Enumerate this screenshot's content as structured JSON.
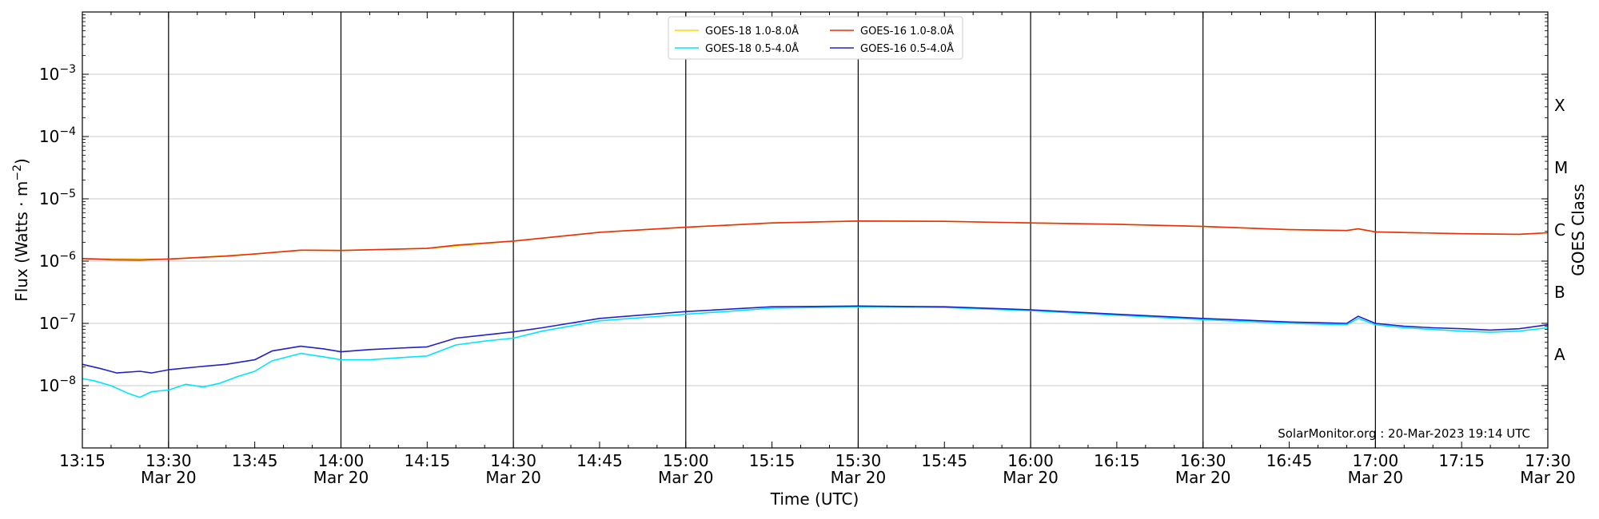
{
  "chart_data": {
    "type": "line",
    "title": "",
    "xlabel": "Time (UTC)",
    "ylabel": "Flux (Watts · m",
    "ylabel_sup": "−2",
    "ylabel_close": ")",
    "y2label": "GOES Class",
    "credit": "SolarMonitor.org : 20-Mar-2023 19:14 UTC",
    "x_scale": "time",
    "y_scale": "log",
    "xlim": [
      "13:15",
      "17:30"
    ],
    "ylim": [
      1e-09,
      0.01
    ],
    "grid": "horizontal",
    "legend_position": "top-center",
    "x_ticks": [
      {
        "time": "13:15",
        "label": "13:15",
        "date": ""
      },
      {
        "time": "13:30",
        "label": "13:30",
        "date": "Mar 20"
      },
      {
        "time": "13:45",
        "label": "13:45",
        "date": ""
      },
      {
        "time": "14:00",
        "label": "14:00",
        "date": "Mar 20"
      },
      {
        "time": "14:15",
        "label": "14:15",
        "date": ""
      },
      {
        "time": "14:30",
        "label": "14:30",
        "date": "Mar 20"
      },
      {
        "time": "14:45",
        "label": "14:45",
        "date": ""
      },
      {
        "time": "15:00",
        "label": "15:00",
        "date": "Mar 20"
      },
      {
        "time": "15:15",
        "label": "15:15",
        "date": ""
      },
      {
        "time": "15:30",
        "label": "15:30",
        "date": "Mar 20"
      },
      {
        "time": "15:45",
        "label": "15:45",
        "date": ""
      },
      {
        "time": "16:00",
        "label": "16:00",
        "date": "Mar 20"
      },
      {
        "time": "16:15",
        "label": "16:15",
        "date": ""
      },
      {
        "time": "16:30",
        "label": "16:30",
        "date": "Mar 20"
      },
      {
        "time": "16:45",
        "label": "16:45",
        "date": ""
      },
      {
        "time": "17:00",
        "label": "17:00",
        "date": "Mar 20"
      },
      {
        "time": "17:15",
        "label": "17:15",
        "date": ""
      },
      {
        "time": "17:30",
        "label": "17:30",
        "date": "Mar 20"
      }
    ],
    "y_ticks": [
      {
        "value": 1e-08,
        "base": "10",
        "exp": "−8"
      },
      {
        "value": 1e-07,
        "base": "10",
        "exp": "−7"
      },
      {
        "value": 1e-06,
        "base": "10",
        "exp": "−6"
      },
      {
        "value": 1e-05,
        "base": "10",
        "exp": "−5"
      },
      {
        "value": 0.0001,
        "base": "10",
        "exp": "−4"
      },
      {
        "value": 0.001,
        "base": "10",
        "exp": "−3"
      }
    ],
    "goes_classes": [
      {
        "label": "A",
        "value": 3.16e-08
      },
      {
        "label": "B",
        "value": 3.16e-07
      },
      {
        "label": "C",
        "value": 3.16e-06
      },
      {
        "label": "M",
        "value": 3.16e-05
      },
      {
        "label": "X",
        "value": 0.000316
      }
    ],
    "series": [
      {
        "name": "GOES-18 1.0-8.0Å",
        "color": "#ffd700",
        "points": [
          [
            "13:15",
            1.1e-06
          ],
          [
            "13:30",
            1.08e-06
          ],
          [
            "13:45",
            1.3e-06
          ],
          [
            "13:53",
            1.5e-06
          ],
          [
            "14:00",
            1.48e-06
          ],
          [
            "14:15",
            1.6e-06
          ],
          [
            "14:30",
            2.1e-06
          ],
          [
            "14:45",
            2.9e-06
          ],
          [
            "15:00",
            3.5e-06
          ],
          [
            "15:15",
            4.1e-06
          ],
          [
            "15:30",
            4.4e-06
          ],
          [
            "15:45",
            4.35e-06
          ],
          [
            "16:00",
            4.1e-06
          ],
          [
            "16:15",
            3.9e-06
          ],
          [
            "16:30",
            3.6e-06
          ],
          [
            "16:45",
            3.2e-06
          ],
          [
            "16:55",
            3.1e-06
          ],
          [
            "16:57",
            3.3e-06
          ],
          [
            "17:00",
            2.95e-06
          ],
          [
            "17:15",
            2.75e-06
          ],
          [
            "17:25",
            2.7e-06
          ],
          [
            "17:30",
            2.85e-06
          ]
        ]
      },
      {
        "name": "GOES-18 0.5-4.0Å",
        "color": "#00e5ff",
        "points": [
          [
            "13:15",
            1.3e-08
          ],
          [
            "13:17",
            1.2e-08
          ],
          [
            "13:20",
            1e-08
          ],
          [
            "13:23",
            7.5e-09
          ],
          [
            "13:25",
            6.5e-09
          ],
          [
            "13:27",
            8e-09
          ],
          [
            "13:30",
            8.5e-09
          ],
          [
            "13:33",
            1.05e-08
          ],
          [
            "13:36",
            9.5e-09
          ],
          [
            "13:39",
            1.1e-08
          ],
          [
            "13:42",
            1.4e-08
          ],
          [
            "13:45",
            1.7e-08
          ],
          [
            "13:48",
            2.5e-08
          ],
          [
            "13:53",
            3.3e-08
          ],
          [
            "13:57",
            2.9e-08
          ],
          [
            "14:00",
            2.6e-08
          ],
          [
            "14:05",
            2.6e-08
          ],
          [
            "14:10",
            2.8e-08
          ],
          [
            "14:15",
            3e-08
          ],
          [
            "14:20",
            4.5e-08
          ],
          [
            "14:25",
            5.2e-08
          ],
          [
            "14:30",
            5.8e-08
          ],
          [
            "14:35",
            7.5e-08
          ],
          [
            "14:45",
            1.1e-07
          ],
          [
            "15:00",
            1.4e-07
          ],
          [
            "15:15",
            1.75e-07
          ],
          [
            "15:30",
            1.85e-07
          ],
          [
            "15:45",
            1.8e-07
          ],
          [
            "16:00",
            1.6e-07
          ],
          [
            "16:15",
            1.35e-07
          ],
          [
            "16:30",
            1.15e-07
          ],
          [
            "16:45",
            1e-07
          ],
          [
            "16:55",
            9.5e-08
          ],
          [
            "16:57",
            1.2e-07
          ],
          [
            "17:00",
            9.5e-08
          ],
          [
            "17:05",
            8.5e-08
          ],
          [
            "17:10",
            8e-08
          ],
          [
            "17:15",
            7.5e-08
          ],
          [
            "17:20",
            7.2e-08
          ],
          [
            "17:25",
            7.5e-08
          ],
          [
            "17:30",
            8.5e-08
          ]
        ]
      },
      {
        "name": "GOES-16 1.0-8.0Å",
        "color": "#ee2c0c",
        "points": [
          [
            "13:15",
            1.1e-06
          ],
          [
            "13:20",
            1.05e-06
          ],
          [
            "13:25",
            1.04e-06
          ],
          [
            "13:30",
            1.08e-06
          ],
          [
            "13:40",
            1.2e-06
          ],
          [
            "13:45",
            1.3e-06
          ],
          [
            "13:53",
            1.5e-06
          ],
          [
            "14:00",
            1.48e-06
          ],
          [
            "14:15",
            1.6e-06
          ],
          [
            "14:20",
            1.8e-06
          ],
          [
            "14:30",
            2.1e-06
          ],
          [
            "14:45",
            2.9e-06
          ],
          [
            "15:00",
            3.5e-06
          ],
          [
            "15:15",
            4.1e-06
          ],
          [
            "15:30",
            4.4e-06
          ],
          [
            "15:45",
            4.35e-06
          ],
          [
            "16:00",
            4.1e-06
          ],
          [
            "16:15",
            3.9e-06
          ],
          [
            "16:30",
            3.6e-06
          ],
          [
            "16:45",
            3.2e-06
          ],
          [
            "16:55",
            3.1e-06
          ],
          [
            "16:57",
            3.3e-06
          ],
          [
            "17:00",
            2.95e-06
          ],
          [
            "17:15",
            2.75e-06
          ],
          [
            "17:25",
            2.7e-06
          ],
          [
            "17:30",
            2.85e-06
          ]
        ]
      },
      {
        "name": "GOES-16 0.5-4.0Å",
        "color": "#2020cc",
        "points": [
          [
            "13:15",
            2.2e-08
          ],
          [
            "13:18",
            1.9e-08
          ],
          [
            "13:21",
            1.6e-08
          ],
          [
            "13:25",
            1.7e-08
          ],
          [
            "13:27",
            1.6e-08
          ],
          [
            "13:30",
            1.8e-08
          ],
          [
            "13:35",
            2e-08
          ],
          [
            "13:40",
            2.2e-08
          ],
          [
            "13:45",
            2.6e-08
          ],
          [
            "13:48",
            3.6e-08
          ],
          [
            "13:53",
            4.3e-08
          ],
          [
            "13:57",
            3.9e-08
          ],
          [
            "14:00",
            3.5e-08
          ],
          [
            "14:05",
            3.8e-08
          ],
          [
            "14:10",
            4e-08
          ],
          [
            "14:15",
            4.2e-08
          ],
          [
            "14:20",
            5.8e-08
          ],
          [
            "14:25",
            6.5e-08
          ],
          [
            "14:30",
            7.3e-08
          ],
          [
            "14:35",
            8.5e-08
          ],
          [
            "14:45",
            1.2e-07
          ],
          [
            "15:00",
            1.55e-07
          ],
          [
            "15:15",
            1.85e-07
          ],
          [
            "15:30",
            1.9e-07
          ],
          [
            "15:45",
            1.85e-07
          ],
          [
            "16:00",
            1.65e-07
          ],
          [
            "16:15",
            1.4e-07
          ],
          [
            "16:30",
            1.2e-07
          ],
          [
            "16:45",
            1.05e-07
          ],
          [
            "16:55",
            1e-07
          ],
          [
            "16:57",
            1.3e-07
          ],
          [
            "17:00",
            1e-07
          ],
          [
            "17:05",
            9e-08
          ],
          [
            "17:10",
            8.5e-08
          ],
          [
            "17:15",
            8.2e-08
          ],
          [
            "17:20",
            7.8e-08
          ],
          [
            "17:25",
            8.2e-08
          ],
          [
            "17:30",
            9.5e-08
          ]
        ]
      }
    ]
  }
}
